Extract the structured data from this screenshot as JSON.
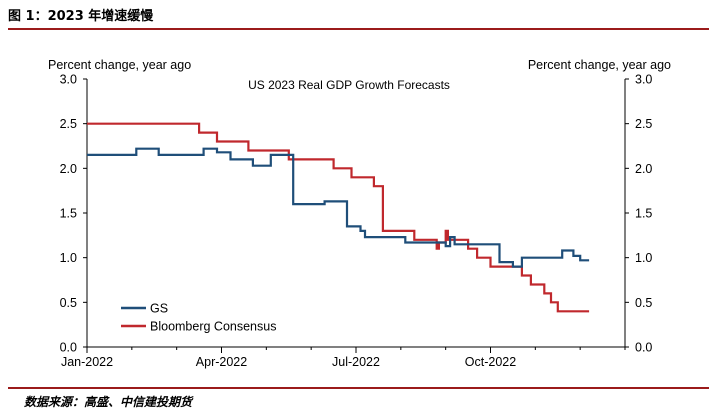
{
  "page": {
    "caption": "图 1：2023 年增速缓慢",
    "source": "数据来源：高盛、中信建投期货"
  },
  "chart_data": {
    "type": "line",
    "title": "US 2023 Real GDP Growth Forecasts",
    "ylabel_left": "Percent change, year ago",
    "ylabel_right": "Percent change, year ago",
    "ylim": [
      0,
      3
    ],
    "yticks": [
      "0.0",
      "0.5",
      "1.0",
      "1.5",
      "2.0",
      "2.5",
      "3.0"
    ],
    "xlim": [
      0,
      12
    ],
    "xticks": [
      {
        "label": "Jan-2022",
        "x": 0
      },
      {
        "label": "Apr-2022",
        "x": 3
      },
      {
        "label": "Jul-2022",
        "x": 6
      },
      {
        "label": "Oct-2022",
        "x": 9
      }
    ],
    "legend_position": "bottom-left",
    "series": [
      {
        "name": "GS",
        "color": "#1f4e79",
        "points": [
          [
            0.0,
            2.15
          ],
          [
            1.1,
            2.15
          ],
          [
            1.1,
            2.22
          ],
          [
            1.6,
            2.22
          ],
          [
            1.6,
            2.15
          ],
          [
            2.6,
            2.15
          ],
          [
            2.6,
            2.22
          ],
          [
            2.9,
            2.22
          ],
          [
            2.9,
            2.18
          ],
          [
            3.2,
            2.18
          ],
          [
            3.2,
            2.1
          ],
          [
            3.7,
            2.1
          ],
          [
            3.7,
            2.03
          ],
          [
            4.1,
            2.03
          ],
          [
            4.1,
            2.15
          ],
          [
            4.6,
            2.15
          ],
          [
            4.6,
            1.6
          ],
          [
            5.3,
            1.6
          ],
          [
            5.3,
            1.63
          ],
          [
            5.8,
            1.63
          ],
          [
            5.8,
            1.35
          ],
          [
            6.1,
            1.35
          ],
          [
            6.1,
            1.3
          ],
          [
            6.2,
            1.3
          ],
          [
            6.2,
            1.23
          ],
          [
            7.1,
            1.23
          ],
          [
            7.1,
            1.17
          ],
          [
            8.0,
            1.17
          ],
          [
            8.0,
            1.13
          ],
          [
            8.1,
            1.13
          ],
          [
            8.1,
            1.23
          ],
          [
            8.2,
            1.23
          ],
          [
            8.2,
            1.15
          ],
          [
            9.2,
            1.15
          ],
          [
            9.2,
            0.95
          ],
          [
            9.5,
            0.95
          ],
          [
            9.5,
            0.9
          ],
          [
            9.7,
            0.9
          ],
          [
            9.7,
            1.0
          ],
          [
            10.6,
            1.0
          ],
          [
            10.6,
            1.08
          ],
          [
            10.85,
            1.08
          ],
          [
            10.85,
            1.02
          ],
          [
            11.0,
            1.02
          ],
          [
            11.0,
            0.97
          ],
          [
            11.2,
            0.97
          ]
        ]
      },
      {
        "name": "Bloomberg Consensus",
        "color": "#c0282d",
        "points": [
          [
            0.0,
            2.5
          ],
          [
            2.5,
            2.5
          ],
          [
            2.5,
            2.4
          ],
          [
            2.9,
            2.4
          ],
          [
            2.9,
            2.3
          ],
          [
            3.6,
            2.3
          ],
          [
            3.6,
            2.2
          ],
          [
            4.5,
            2.2
          ],
          [
            4.5,
            2.1
          ],
          [
            5.5,
            2.1
          ],
          [
            5.5,
            2.0
          ],
          [
            5.9,
            2.0
          ],
          [
            5.9,
            1.9
          ],
          [
            6.4,
            1.9
          ],
          [
            6.4,
            1.8
          ],
          [
            6.6,
            1.8
          ],
          [
            6.6,
            1.3
          ],
          [
            7.3,
            1.3
          ],
          [
            7.3,
            1.2
          ],
          [
            7.8,
            1.2
          ],
          [
            7.8,
            1.1
          ],
          [
            7.85,
            1.1
          ],
          [
            7.85,
            1.17
          ],
          [
            8.0,
            1.17
          ],
          [
            8.0,
            1.3
          ],
          [
            8.05,
            1.3
          ],
          [
            8.05,
            1.2
          ],
          [
            8.5,
            1.2
          ],
          [
            8.5,
            1.1
          ],
          [
            8.7,
            1.1
          ],
          [
            8.7,
            1.0
          ],
          [
            9.0,
            1.0
          ],
          [
            9.0,
            0.9
          ],
          [
            9.7,
            0.9
          ],
          [
            9.7,
            0.8
          ],
          [
            9.9,
            0.8
          ],
          [
            9.9,
            0.7
          ],
          [
            10.2,
            0.7
          ],
          [
            10.2,
            0.6
          ],
          [
            10.35,
            0.6
          ],
          [
            10.35,
            0.5
          ],
          [
            10.5,
            0.5
          ],
          [
            10.5,
            0.4
          ],
          [
            11.2,
            0.4
          ]
        ]
      }
    ]
  }
}
